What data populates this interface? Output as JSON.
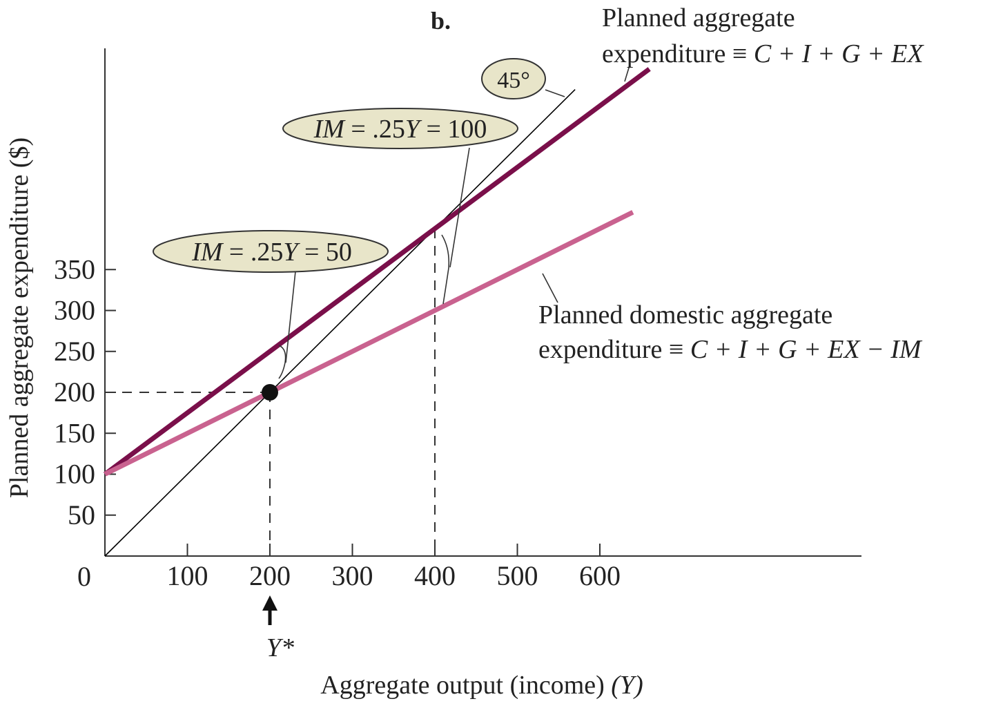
{
  "chart_data": {
    "type": "line",
    "panel_label": "b.",
    "xlabel_main": "Aggregate output (income) ",
    "xlabel_var": "(Y)",
    "ylabel": "Planned aggregate expenditure ($)",
    "xlim": [
      0,
      900
    ],
    "ylim": [
      0,
      620
    ],
    "x_ticks": [
      100,
      200,
      300,
      400,
      500,
      600
    ],
    "y_ticks": [
      50,
      100,
      150,
      200,
      250,
      300,
      350
    ],
    "origin_label": "0",
    "series": [
      {
        "key": "forty_five",
        "x": [
          0,
          570
        ],
        "y": [
          0,
          570
        ],
        "color": "#000000"
      },
      {
        "key": "ae",
        "x": [
          0,
          660
        ],
        "y": [
          100,
          595
        ],
        "color": "#7a0f4a"
      },
      {
        "key": "domestic_ae",
        "x": [
          0,
          640
        ],
        "y": [
          100,
          420
        ],
        "color": "#c9628f"
      }
    ],
    "equilibrium": {
      "x": 200,
      "y": 200,
      "label": "Y*"
    },
    "reference_output": 400,
    "annotations": {
      "forty_five_label": "45°",
      "im_50": {
        "prefix": "IM",
        "text": " = .25",
        "var": "Y",
        "value": " = 50"
      },
      "im_100": {
        "prefix": "IM",
        "text": " = .25",
        "var": "Y",
        "value": " = 100"
      },
      "ae_label_line1": "Planned aggregate",
      "ae_label_line2_a": "expenditure ≡ ",
      "ae_label_line2_b": "C + I + G + EX",
      "dom_label_line1": "Planned domestic aggregate",
      "dom_label_line2_a": "expenditure ≡ ",
      "dom_label_line2_b": "C + I + G + EX − IM"
    },
    "colors": {
      "bubble_fill": "#e8e5c9",
      "axis": "#333333"
    }
  }
}
